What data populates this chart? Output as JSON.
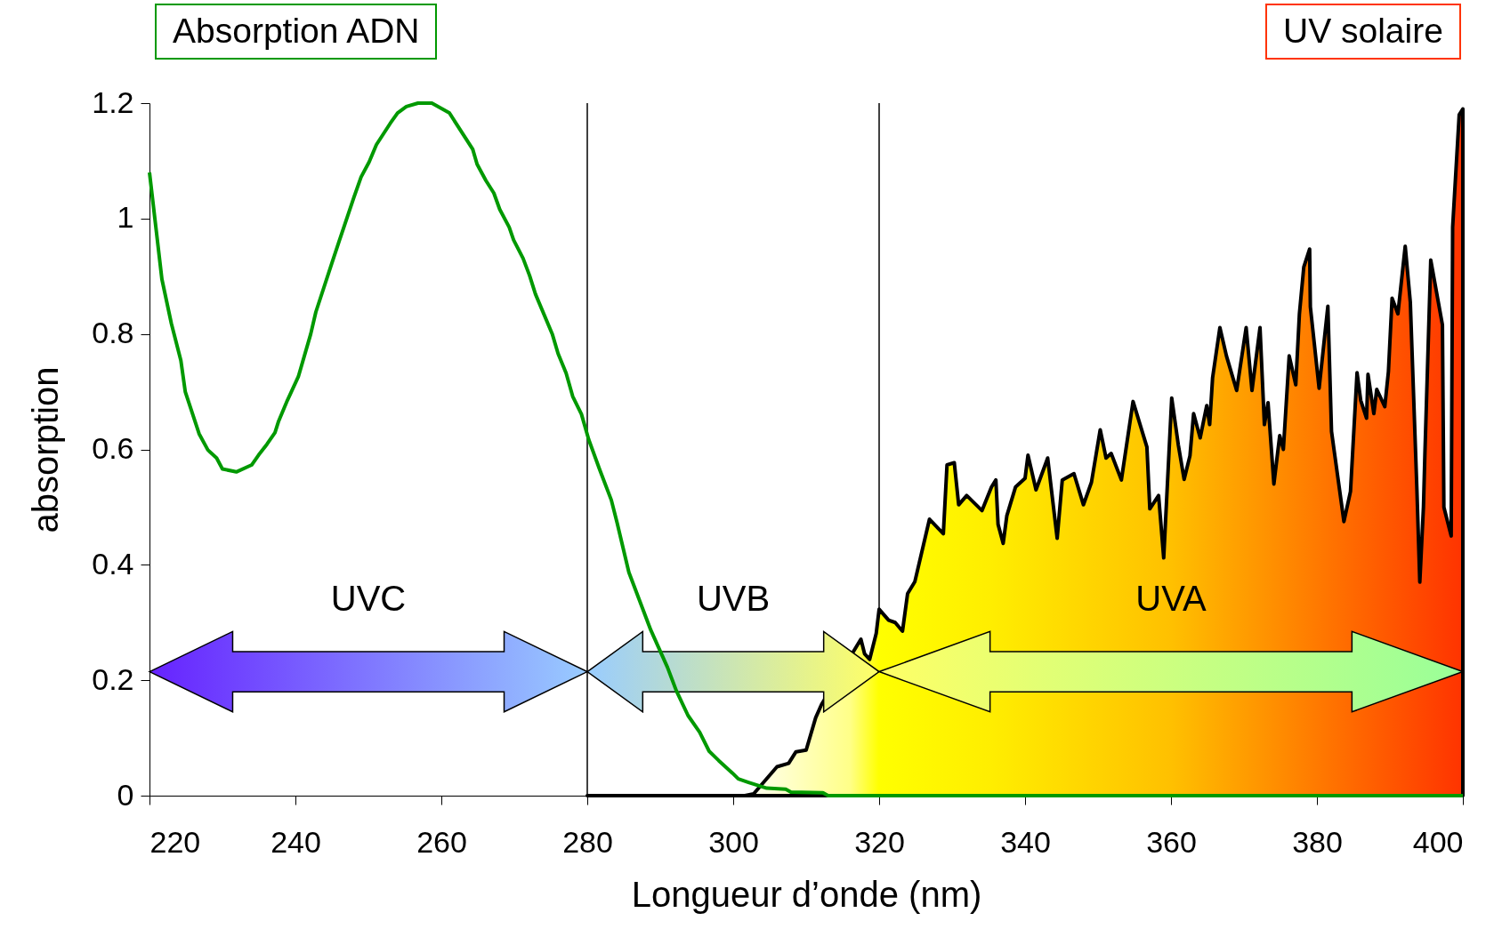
{
  "chart_data": {
    "type": "line",
    "xlabel": "Longueur d’onde (nm)",
    "ylabel": "absorption",
    "xlim": [
      220,
      400
    ],
    "ylim": [
      0,
      1.2
    ],
    "xticks": [
      220,
      240,
      260,
      280,
      300,
      320,
      340,
      360,
      380,
      400
    ],
    "yticks": [
      0,
      0.2,
      0.4,
      0.6,
      0.8,
      1,
      1.2
    ],
    "legend": "top",
    "ref_lines": [
      {
        "axis": "x",
        "value": 280
      },
      {
        "axis": "x",
        "value": 320
      }
    ],
    "annotations": [
      "UVC",
      "UVB",
      "UVA"
    ],
    "series": [
      {
        "name": "UV solaire",
        "type": "area",
        "color": "#000000",
        "x": [
          280,
          301.6,
          302.8,
          306,
          307.6,
          308.6,
          310,
          311.3,
          312.1,
          317.5,
          318,
          318.7,
          319.6,
          320,
          321.3,
          322.2,
          323.2,
          323.9,
          324.9,
          326.9,
          328.8,
          329.3,
          330.3,
          330.9,
          332,
          334.1,
          335.4,
          336,
          336.3,
          337,
          337.5,
          338.7,
          340,
          340.4,
          341.5,
          343.1,
          344.4,
          345.1,
          346.7,
          348,
          349.1,
          350.3,
          351.1,
          351.8,
          353.2,
          354.8,
          356.7,
          357.1,
          358.3,
          359,
          360.1,
          361,
          361.8,
          362.6,
          363.1,
          364,
          364.9,
          365.3,
          365.7,
          366.7,
          367.6,
          369,
          370.3,
          371.1,
          372.2,
          372.8,
          373.3,
          374.1,
          374.9,
          375.4,
          376.2,
          377.1,
          377.6,
          378.2,
          379,
          379.1,
          380.3,
          381.5,
          382,
          383.7,
          384.6,
          385.5,
          386,
          386.8,
          387,
          387.8,
          388.2,
          389.3,
          389.8,
          390.3,
          391.1,
          392.1,
          392.8,
          393.7,
          394.1,
          394.6,
          394.8,
          395.6,
          397.2,
          397.4,
          398.4,
          398.6,
          399.5,
          400
        ],
        "values": [
          0,
          0,
          0.003,
          0.05,
          0.056,
          0.076,
          0.079,
          0.135,
          0.158,
          0.271,
          0.246,
          0.236,
          0.281,
          0.323,
          0.304,
          0.3,
          0.285,
          0.35,
          0.371,
          0.479,
          0.454,
          0.573,
          0.577,
          0.504,
          0.52,
          0.494,
          0.535,
          0.547,
          0.47,
          0.437,
          0.485,
          0.535,
          0.55,
          0.59,
          0.53,
          0.585,
          0.446,
          0.547,
          0.558,
          0.504,
          0.543,
          0.634,
          0.585,
          0.593,
          0.547,
          0.683,
          0.604,
          0.497,
          0.52,
          0.412,
          0.689,
          0.608,
          0.548,
          0.589,
          0.662,
          0.62,
          0.676,
          0.643,
          0.724,
          0.811,
          0.762,
          0.702,
          0.811,
          0.702,
          0.811,
          0.643,
          0.681,
          0.54,
          0.624,
          0.6,
          0.762,
          0.712,
          0.835,
          0.916,
          0.947,
          0.847,
          0.706,
          0.848,
          0.631,
          0.475,
          0.527,
          0.733,
          0.685,
          0.654,
          0.73,
          0.662,
          0.704,
          0.674,
          0.735,
          0.862,
          0.835,
          0.952,
          0.855,
          0.531,
          0.37,
          0.5,
          0.593,
          0.928,
          0.816,
          0.5,
          0.45,
          0.985,
          1.18,
          1.19
        ]
      },
      {
        "name": "Absorption ADN",
        "color": "#009900",
        "x": [
          220,
          221.7,
          223,
          224.3,
          224.9,
          226.8,
          228,
          229.2,
          230,
          231.9,
          234,
          235,
          236.1,
          237.2,
          237.7,
          238.9,
          240.4,
          242.1,
          242.8,
          245,
          246,
          248,
          249,
          250.1,
          251.1,
          253,
          254,
          255.2,
          256.8,
          258.7,
          261.1,
          264.3,
          264.9,
          266.1,
          267.2,
          268,
          269.3,
          269.9,
          271.2,
          272.1,
          272.9,
          275.2,
          276,
          277.1,
          278,
          279.2,
          280.2,
          281.7,
          283.3,
          284.1,
          285.7,
          288.7,
          291,
          292.2,
          293.8,
          295.4,
          296.7,
          298,
          299.9,
          300.7,
          302.1,
          304.6,
          307.2,
          307.9,
          312.3,
          313,
          320,
          400
        ],
        "values": [
          1.08,
          0.895,
          0.818,
          0.754,
          0.7,
          0.627,
          0.599,
          0.585,
          0.566,
          0.561,
          0.573,
          0.591,
          0.609,
          0.629,
          0.649,
          0.685,
          0.726,
          0.8,
          0.838,
          0.923,
          0.961,
          1.036,
          1.072,
          1.098,
          1.128,
          1.165,
          1.183,
          1.194,
          1.2,
          1.2,
          1.183,
          1.12,
          1.094,
          1.066,
          1.044,
          1.016,
          0.985,
          0.963,
          0.931,
          0.901,
          0.869,
          0.8,
          0.766,
          0.732,
          0.692,
          0.661,
          0.617,
          0.565,
          0.512,
          0.472,
          0.387,
          0.287,
          0.222,
          0.182,
          0.139,
          0.11,
          0.077,
          0.061,
          0.039,
          0.029,
          0.023,
          0.013,
          0.011,
          0.006,
          0.005,
          0,
          0,
          0
        ]
      }
    ]
  }
}
